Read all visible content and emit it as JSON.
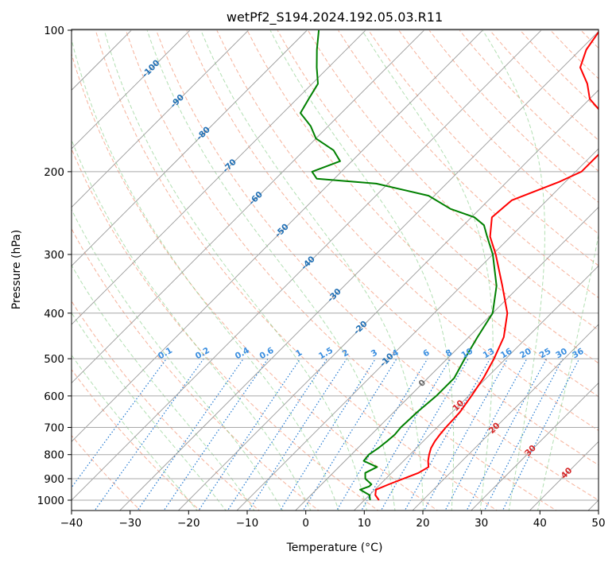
{
  "chart_data": {
    "type": "line",
    "title": "wetPf2_S194.2024.192.05.03.R11",
    "xlabel": "Temperature (°C)",
    "ylabel": "Pressure (hPa)",
    "xlim": [
      -40,
      50
    ],
    "ylim": [
      1050,
      100
    ],
    "y_scale": "log",
    "x_ticks": [
      -40,
      -30,
      -20,
      -10,
      0,
      10,
      20,
      30,
      40,
      50
    ],
    "x_tick_labels": [
      "−40",
      "−30",
      "−20",
      "−10",
      "0",
      "10",
      "20",
      "30",
      "40",
      "50"
    ],
    "y_ticks": [
      100,
      200,
      300,
      400,
      500,
      600,
      700,
      800,
      900,
      1000
    ],
    "y_tick_labels": [
      "100",
      "200",
      "300",
      "400",
      "500",
      "600",
      "700",
      "800",
      "900",
      "1000"
    ],
    "grid": true,
    "isotherms_labeled": [
      {
        "t": -100,
        "label": "-100"
      },
      {
        "t": -90,
        "label": "-90"
      },
      {
        "t": -80,
        "label": "-80"
      },
      {
        "t": -70,
        "label": "-70"
      },
      {
        "t": -60,
        "label": "-60"
      },
      {
        "t": -50,
        "label": "-50"
      },
      {
        "t": -40,
        "label": "-40"
      },
      {
        "t": -30,
        "label": "-30"
      },
      {
        "t": -20,
        "label": "-20"
      },
      {
        "t": -10,
        "label": "-10"
      },
      {
        "t": 0,
        "label": "0"
      },
      {
        "t": 10,
        "label": "10"
      },
      {
        "t": 20,
        "label": "20"
      },
      {
        "t": 30,
        "label": "30"
      },
      {
        "t": 40,
        "label": "40"
      }
    ],
    "mixing_ratio_labels": [
      "0.1",
      "0.2",
      "0.4",
      "0.6",
      "1",
      "1.5",
      "2",
      "3",
      "4",
      "6",
      "8",
      "10",
      "13",
      "16",
      "20",
      "25",
      "30",
      "36"
    ],
    "mixing_ratios": [
      0.1,
      0.2,
      0.4,
      0.6,
      1,
      1.5,
      2,
      3,
      4,
      6,
      8,
      10,
      13,
      16,
      20,
      25,
      30,
      36
    ],
    "series": [
      {
        "role": "temperature",
        "color": "#ff0000",
        "points": [
          [
            1000,
            12.5
          ],
          [
            975,
            11.0
          ],
          [
            950,
            10.2
          ],
          [
            925,
            11.5
          ],
          [
            900,
            13.0
          ],
          [
            875,
            14.6
          ],
          [
            850,
            15.3
          ],
          [
            825,
            14.2
          ],
          [
            800,
            13.3
          ],
          [
            775,
            12.5
          ],
          [
            750,
            12.0
          ],
          [
            725,
            11.7
          ],
          [
            700,
            11.5
          ],
          [
            650,
            11.3
          ],
          [
            600,
            10.5
          ],
          [
            550,
            9.5
          ],
          [
            500,
            8.0
          ],
          [
            450,
            6.0
          ],
          [
            400,
            2.5
          ],
          [
            350,
            -3.0
          ],
          [
            300,
            -9.5
          ],
          [
            275,
            -13.5
          ],
          [
            250,
            -16.5
          ],
          [
            230,
            -16.0
          ],
          [
            210,
            -11.0
          ],
          [
            200,
            -9.0
          ],
          [
            180,
            -9.0
          ],
          [
            160,
            -12.0
          ],
          [
            150,
            -15.5
          ],
          [
            140,
            -20.0
          ],
          [
            130,
            -23.0
          ],
          [
            120,
            -27.0
          ],
          [
            110,
            -29.0
          ],
          [
            100,
            -30.0
          ]
        ]
      },
      {
        "role": "dewpoint",
        "color": "#008000",
        "points": [
          [
            1000,
            11.0
          ],
          [
            975,
            10.0
          ],
          [
            950,
            7.5
          ],
          [
            935,
            8.5
          ],
          [
            925,
            8.5
          ],
          [
            900,
            6.5
          ],
          [
            875,
            5.5
          ],
          [
            850,
            6.5
          ],
          [
            825,
            3.2
          ],
          [
            800,
            3.0
          ],
          [
            775,
            3.5
          ],
          [
            750,
            3.8
          ],
          [
            725,
            4.0
          ],
          [
            700,
            3.8
          ],
          [
            650,
            4.0
          ],
          [
            600,
            4.5
          ],
          [
            550,
            4.5
          ],
          [
            500,
            3.0
          ],
          [
            450,
            1.5
          ],
          [
            400,
            0.0
          ],
          [
            350,
            -4.0
          ],
          [
            300,
            -10.0
          ],
          [
            275,
            -14.0
          ],
          [
            260,
            -16.5
          ],
          [
            250,
            -19.5
          ],
          [
            240,
            -25.0
          ],
          [
            225,
            -31.0
          ],
          [
            212,
            -42.0
          ],
          [
            207,
            -53.0
          ],
          [
            200,
            -55.0
          ],
          [
            190,
            -52.0
          ],
          [
            180,
            -55.0
          ],
          [
            170,
            -60.0
          ],
          [
            160,
            -63.0
          ],
          [
            150,
            -67.0
          ],
          [
            140,
            -68.0
          ],
          [
            130,
            -69.0
          ],
          [
            120,
            -72.0
          ],
          [
            110,
            -75.0
          ],
          [
            100,
            -78.0
          ]
        ]
      }
    ]
  }
}
